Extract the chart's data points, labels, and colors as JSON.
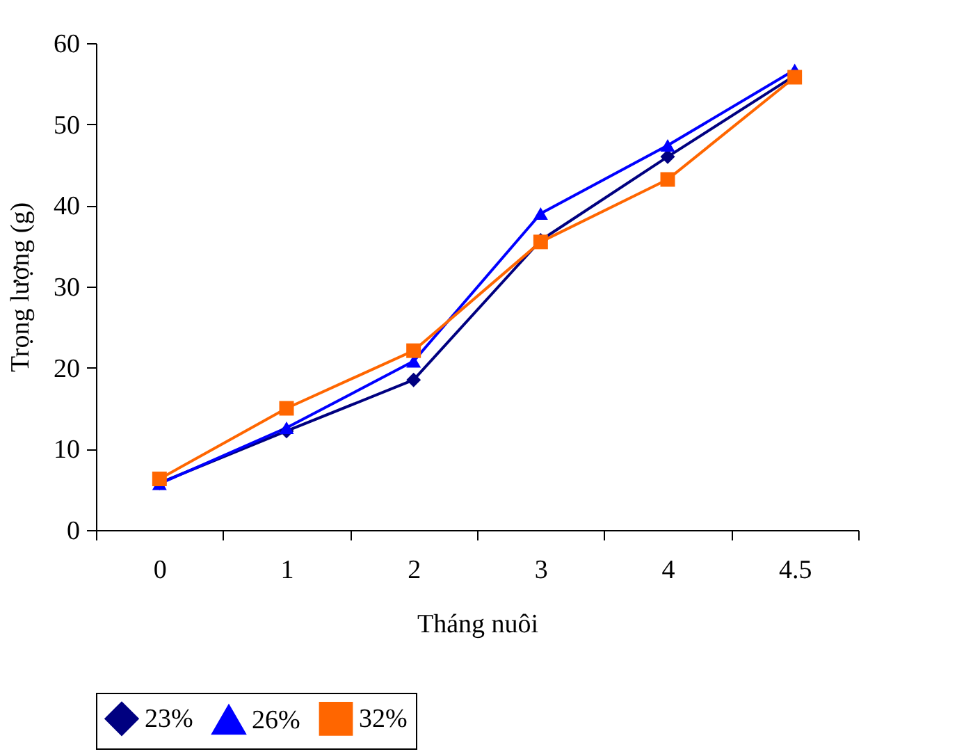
{
  "chart_data": {
    "type": "line",
    "xlabel": "Tháng nuôi",
    "ylabel": "Trọng lượng (g)",
    "categories": [
      "0",
      "1",
      "2",
      "3",
      "4",
      "4.5"
    ],
    "series": [
      {
        "name": "23%",
        "color": "#000080",
        "marker": "diamond",
        "values": [
          5.8,
          12.2,
          18.5,
          35.7,
          46,
          56
        ]
      },
      {
        "name": "26%",
        "color": "#0000ff",
        "marker": "triangle",
        "values": [
          5.7,
          12.6,
          20.8,
          39,
          47.4,
          56.7
        ]
      },
      {
        "name": "32%",
        "color": "#ff6600",
        "marker": "square",
        "values": [
          6.3,
          15,
          22.1,
          35.5,
          43.2,
          55.8
        ]
      }
    ],
    "ylim": [
      0,
      60
    ],
    "yticks": [
      0,
      10,
      20,
      30,
      40,
      50,
      60
    ],
    "grid": false,
    "legend": "bottom"
  }
}
